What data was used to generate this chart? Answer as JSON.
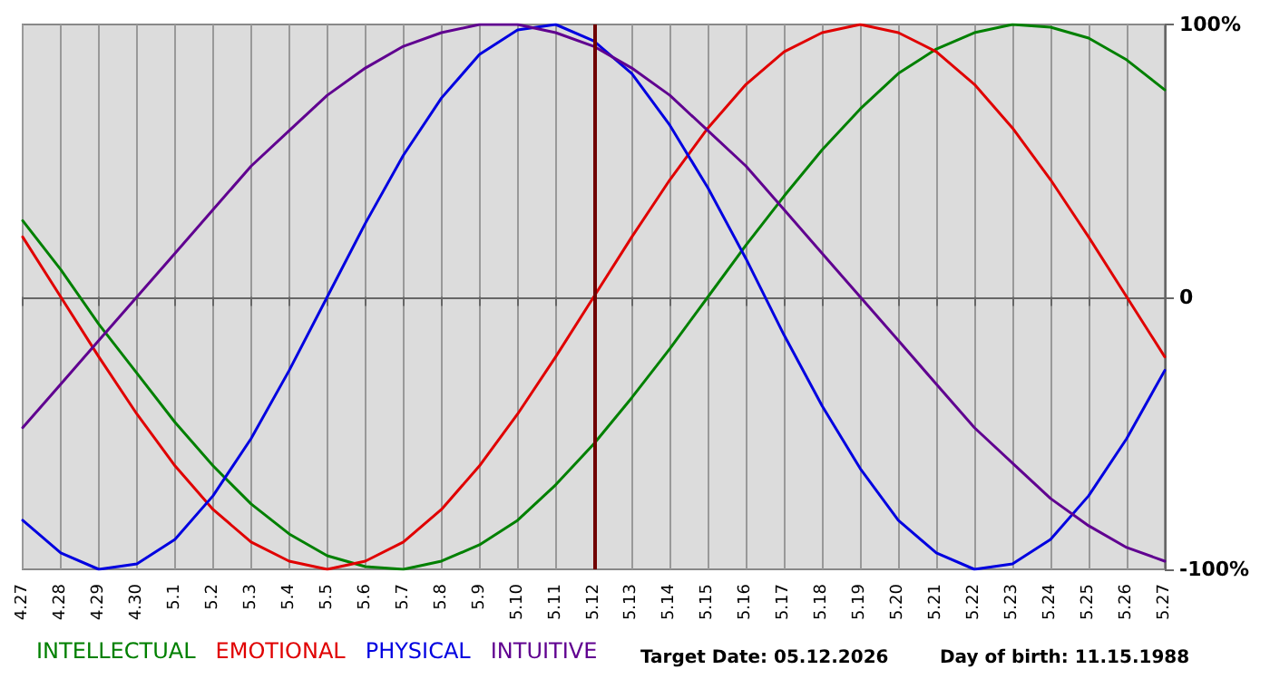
{
  "chart_data": {
    "type": "line",
    "categories": [
      "4.27",
      "4.28",
      "4.29",
      "4.30",
      "5.1",
      "5.2",
      "5.3",
      "5.4",
      "5.5",
      "5.6",
      "5.7",
      "5.8",
      "5.9",
      "5.10",
      "5.11",
      "5.12",
      "5.13",
      "5.14",
      "5.15",
      "5.16",
      "5.17",
      "5.18",
      "5.19",
      "5.20",
      "5.21",
      "5.22",
      "5.23",
      "5.24",
      "5.25",
      "5.26",
      "5.27"
    ],
    "series": [
      {
        "name": "INTELLECTUAL",
        "color": "#008000",
        "values": [
          28,
          10,
          -10,
          -28,
          -46,
          -62,
          -76,
          -87,
          -95,
          -99,
          -100,
          -97,
          -91,
          -82,
          -69,
          -54,
          -37,
          -19,
          0,
          19,
          37,
          54,
          69,
          82,
          91,
          97,
          100,
          99,
          95,
          87,
          76
        ]
      },
      {
        "name": "EMOTIONAL",
        "color": "#e00000",
        "values": [
          22,
          0,
          -22,
          -43,
          -62,
          -78,
          -90,
          -97,
          -100,
          -97,
          -90,
          -78,
          -62,
          -43,
          -22,
          0,
          22,
          43,
          62,
          78,
          90,
          97,
          100,
          97,
          90,
          78,
          62,
          43,
          22,
          0,
          -22
        ]
      },
      {
        "name": "PHYSICAL",
        "color": "#0000e0",
        "values": [
          -82,
          -94,
          -100,
          -98,
          -89,
          -73,
          -52,
          -27,
          0,
          27,
          52,
          73,
          89,
          98,
          100,
          94,
          82,
          63,
          40,
          14,
          -14,
          -40,
          -63,
          -82,
          -94,
          -100,
          -98,
          -89,
          -73,
          -52,
          -27
        ]
      },
      {
        "name": "INTUITIVE",
        "color": "#600090",
        "values": [
          -48,
          -32,
          -16,
          0,
          16,
          32,
          48,
          61,
          74,
          84,
          92,
          97,
          100,
          100,
          97,
          92,
          84,
          74,
          61,
          48,
          32,
          16,
          0,
          -16,
          -32,
          -48,
          -61,
          -74,
          -84,
          -92,
          -97
        ]
      }
    ],
    "ylim": [
      -100,
      100
    ],
    "yticks": [
      {
        "value": -100,
        "label": "-100%"
      },
      0,
      {
        "value": 100,
        "label": "100%"
      }
    ],
    "ref_lines": [
      {
        "axis": "x",
        "value": "5.12",
        "color": "#700000"
      }
    ],
    "annotations": [
      "Target Date: 05.12.2026",
      "Day of birth: 11.15.1988"
    ],
    "grid": "x",
    "legend": "bottom left",
    "marker": "none",
    "line_style": "solid"
  }
}
